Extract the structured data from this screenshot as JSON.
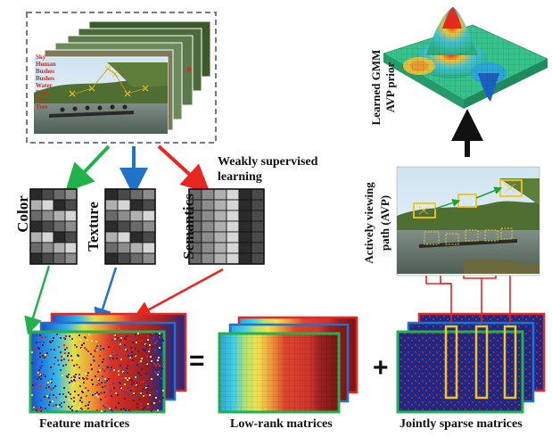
{
  "labels": {
    "color": "Color",
    "texture": "Texture",
    "semantics": "Semantics",
    "weakly": "Weakly supervised",
    "learning": "learning",
    "feature": "Feature matrices",
    "lowrank": "Low-rank matrices",
    "sparse": "Jointly sparse matrices",
    "gmm1": "Learned GMM",
    "gmm2": "AVP prior",
    "avp1": "Actively viewing",
    "avp2": "path (AVP)",
    "eq": "=",
    "plus": "+"
  },
  "photo_annotations": [
    "Sky",
    "Human",
    "Bushes",
    "Bushes",
    "Water",
    "Boat",
    "Tree",
    "Tree"
  ],
  "colors": {
    "green_arrow": "#22b24c",
    "blue_arrow": "#1f73c8",
    "red_arrow": "#e8261e",
    "gaze_box": "#f5c518",
    "gaze_path_green": "#1e9e3c",
    "sparse_bg": "#1a2a8c",
    "sparse_dot": "#b21f1f"
  },
  "icons": [
    "gray-matrix-icon",
    "gaze-box-icon",
    "surface-plot-icon",
    "photo-thumbnail-icon"
  ]
}
